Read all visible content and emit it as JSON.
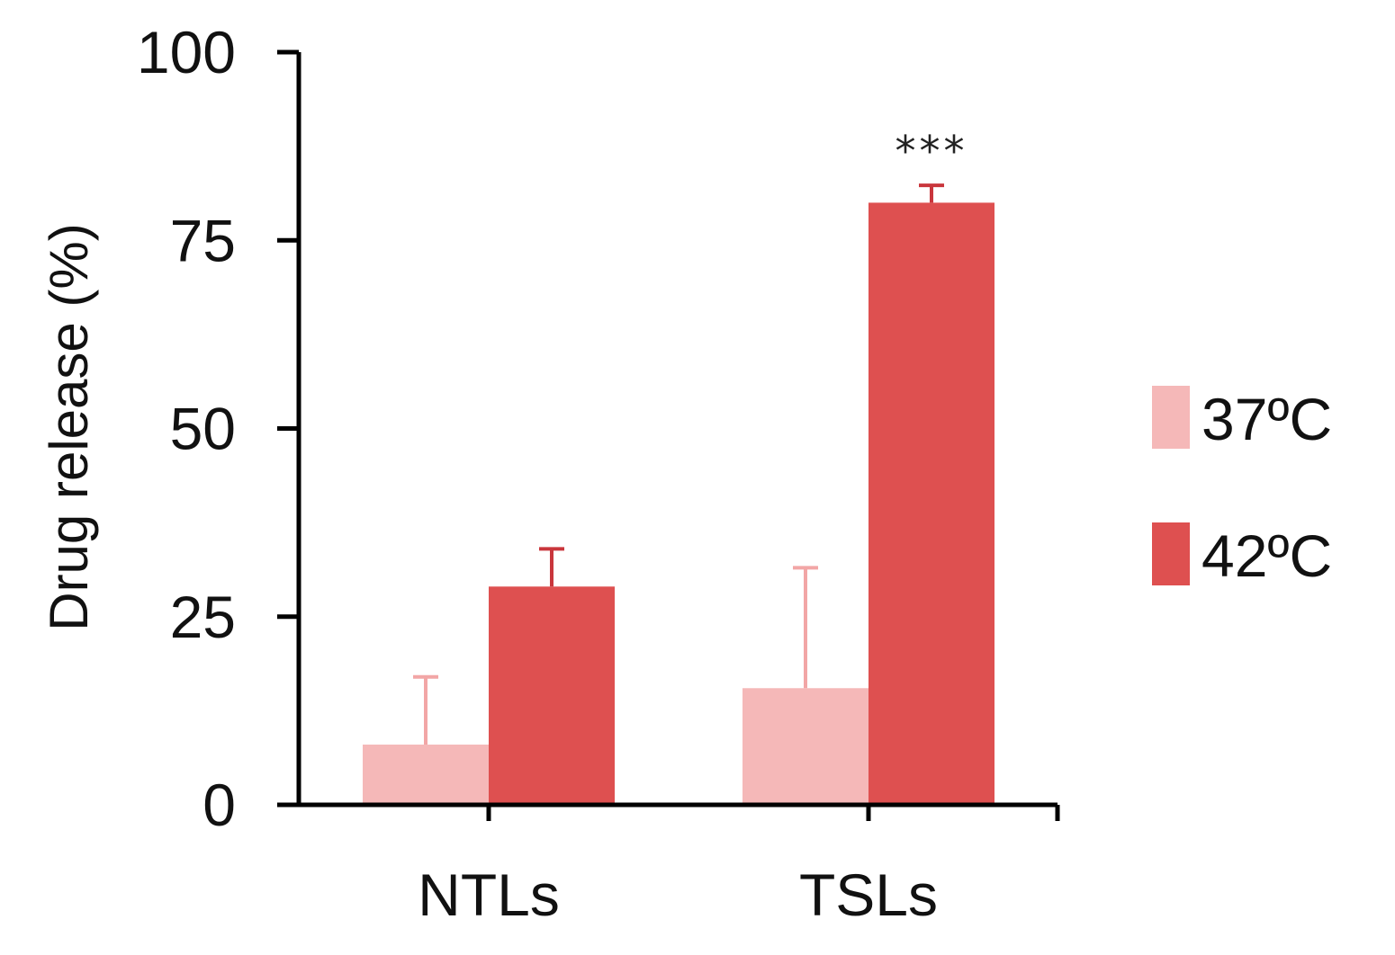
{
  "chart_data": {
    "type": "bar",
    "ylabel": "Drug release (%)",
    "xlabel": "",
    "ylim": [
      0,
      100
    ],
    "yticks": [
      "0",
      "25",
      "50",
      "75",
      "100"
    ],
    "categories": [
      "NTLs",
      "TSLs"
    ],
    "series": [
      {
        "name": "37ºC",
        "color": "#f5b8b8",
        "values": [
          8,
          15.5
        ],
        "errors": [
          9,
          16
        ]
      },
      {
        "name": "42ºC",
        "color": "#de5050",
        "values": [
          29,
          80
        ],
        "errors": [
          5,
          2.3
        ]
      }
    ],
    "annotations": [
      {
        "category": "TSLs",
        "series": "42ºC",
        "text": "***"
      }
    ],
    "legend_position": "right",
    "grid": false
  }
}
